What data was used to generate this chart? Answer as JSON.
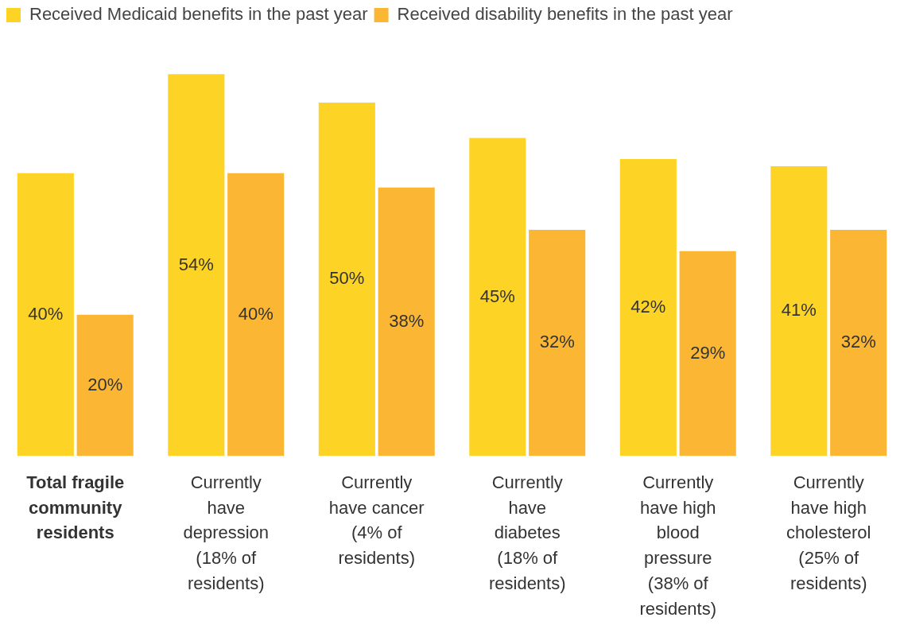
{
  "chart_data": {
    "type": "bar",
    "categories": [
      "Total fragile community residents",
      "Currently have depression (18% of residents)",
      "Currently have cancer (4% of residents)",
      "Currently have diabetes (18% of residents)",
      "Currently have high blood pressure (38% of residents)",
      "Currently have high cholesterol (25% of residents)"
    ],
    "series": [
      {
        "name": "Received Medicaid benefits in the past year",
        "color": "#fdd426",
        "values": [
          40,
          54,
          50,
          45,
          42,
          41
        ],
        "value_labels": [
          "40%",
          "54%",
          "50%",
          "45%",
          "42%",
          "41%"
        ]
      },
      {
        "name": "Received disability benefits in the past year",
        "color": "#fbb634",
        "values": [
          20,
          40,
          38,
          32,
          29,
          32
        ],
        "value_labels": [
          "20%",
          "40%",
          "38%",
          "32%",
          "29%",
          "32%"
        ]
      }
    ],
    "legend": "top left",
    "grid": false
  }
}
